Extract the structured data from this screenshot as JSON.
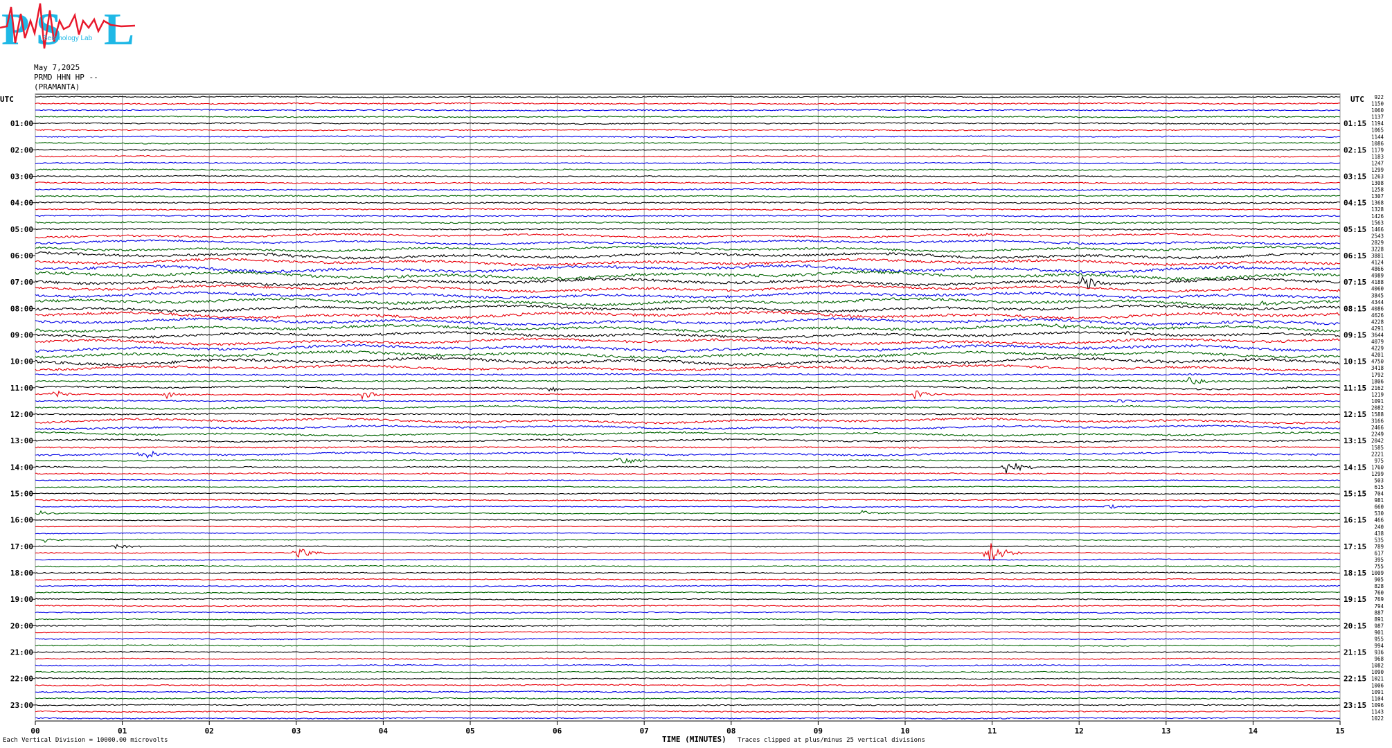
{
  "logo": {
    "text": "PSL",
    "small_text": "Seismology Lab",
    "colors": {
      "letters": "#1fb8e6",
      "trace": "#e8192c"
    }
  },
  "header": {
    "date": "May 7,2025",
    "station": "PRMD HHN HP --",
    "site": "(PRAMANTA)"
  },
  "footer": {
    "scale_note": "Each Vertical Division = 10000.00 microvolts",
    "xlabel": "TIME (MINUTES)",
    "clip_note": "Traces clipped at plus/minus 25 vertical divisions"
  },
  "chart_data": {
    "type": "line",
    "subtype": "helicorder",
    "xlabel": "TIME (MINUTES)",
    "xlim": [
      0,
      15
    ],
    "x_ticks": [
      "00",
      "01",
      "02",
      "03",
      "04",
      "05",
      "06",
      "07",
      "08",
      "09",
      "10",
      "11",
      "12",
      "13",
      "14",
      "15"
    ],
    "left_axis_title": "UTC",
    "right_axis_title": "UTC",
    "left_labels": [
      "01:00",
      "02:00",
      "03:00",
      "04:00",
      "05:00",
      "06:00",
      "07:00",
      "08:00",
      "09:00",
      "10:00",
      "11:00",
      "12:00",
      "13:00",
      "14:00",
      "15:00",
      "16:00",
      "17:00",
      "18:00",
      "19:00",
      "20:00",
      "21:00",
      "22:00",
      "23:00"
    ],
    "right_labels": [
      "01:15",
      "02:15",
      "03:15",
      "04:15",
      "05:15",
      "06:15",
      "07:15",
      "08:15",
      "09:15",
      "10:15",
      "11:15",
      "12:15",
      "13:15",
      "14:15",
      "15:15",
      "16:15",
      "17:15",
      "18:15",
      "19:15",
      "20:15",
      "21:15",
      "22:15",
      "23:15"
    ],
    "trace_color_cycle": [
      "#000000",
      "#e8000b",
      "#0000e6",
      "#006400"
    ],
    "grid": true,
    "rms_values": [
      922,
      1150,
      1060,
      1137,
      1194,
      1065,
      1144,
      1086,
      1179,
      1183,
      1247,
      1299,
      1263,
      1308,
      1258,
      1307,
      1368,
      1328,
      1426,
      1563,
      1466,
      2543,
      2829,
      3228,
      3881,
      4124,
      4866,
      4989,
      4188,
      4060,
      3845,
      4344,
      4086,
      4626,
      4228,
      4291,
      3644,
      4079,
      4229,
      4201,
      4750,
      3418,
      1792,
      1806,
      2162,
      1219,
      1091,
      2082,
      1588,
      3166,
      2466,
      2249,
      2042,
      1585,
      2221,
      975,
      1760,
      1299,
      503,
      615,
      704,
      981,
      660,
      530,
      466,
      240,
      438,
      535,
      789,
      617,
      395,
      755,
      1009,
      905,
      828,
      760,
      769,
      794,
      887,
      891,
      987,
      901,
      955,
      994,
      936,
      968,
      1082,
      1090,
      1021,
      1006,
      1091,
      1104,
      1096,
      1143,
      1022
    ],
    "events": [
      {
        "line": 21,
        "minute": 10.75,
        "amplitude": 7
      },
      {
        "line": 22,
        "minute": 11.8,
        "amplitude": 4
      },
      {
        "line": 24,
        "minute": 2.65,
        "amplitude": 5
      },
      {
        "line": 28,
        "minute": 12.0,
        "amplitude": 20
      },
      {
        "line": 31,
        "minute": 14.1,
        "amplitude": 4
      },
      {
        "line": 35,
        "minute": 11.75,
        "amplitude": 5
      },
      {
        "line": 36,
        "minute": 12.5,
        "amplitude": 4
      },
      {
        "line": 38,
        "minute": 14.0,
        "amplitude": 4
      },
      {
        "line": 43,
        "minute": 13.25,
        "amplitude": 7
      },
      {
        "line": 44,
        "minute": 5.9,
        "amplitude": 5
      },
      {
        "line": 44,
        "minute": 14.3,
        "amplitude": 4
      },
      {
        "line": 45,
        "minute": 0.2,
        "amplitude": 6
      },
      {
        "line": 45,
        "minute": 1.5,
        "amplitude": 6
      },
      {
        "line": 45,
        "minute": 3.75,
        "amplitude": 7
      },
      {
        "line": 45,
        "minute": 10.1,
        "amplitude": 7
      },
      {
        "line": 46,
        "minute": 12.4,
        "amplitude": 4
      },
      {
        "line": 54,
        "minute": 1.2,
        "amplitude": 12
      },
      {
        "line": 55,
        "minute": 6.7,
        "amplitude": 10
      },
      {
        "line": 56,
        "minute": 11.15,
        "amplitude": 12
      },
      {
        "line": 62,
        "minute": 12.3,
        "amplitude": 4
      },
      {
        "line": 63,
        "minute": 0.05,
        "amplitude": 4
      },
      {
        "line": 63,
        "minute": 9.5,
        "amplitude": 4
      },
      {
        "line": 67,
        "minute": 0.1,
        "amplitude": 4
      },
      {
        "line": 68,
        "minute": 0.9,
        "amplitude": 4
      },
      {
        "line": 69,
        "minute": 3.0,
        "amplitude": 10
      },
      {
        "line": 69,
        "minute": 10.95,
        "amplitude": 20
      }
    ]
  }
}
